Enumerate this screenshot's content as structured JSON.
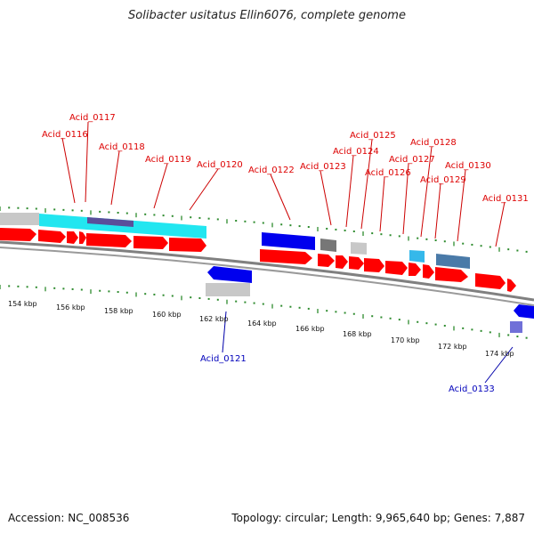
{
  "title": "Solibacter usitatus Ellin6076, complete genome",
  "footer": {
    "accession": "Accession: NC_008536",
    "summary": "Topology: circular; Length: 9,965,640 bp; Genes: 7,887"
  },
  "colors": {
    "forward_gene": "#ff0000",
    "reverse_gene": "#0000ee",
    "label_forward": "#dd0000",
    "label_reverse": "#0000bb",
    "tick": "#2e8b2e",
    "backbone": "#808080",
    "cyan": "#22e6f0",
    "gray_light": "#c8c8c8",
    "gray_dark": "#777777",
    "steel_blue": "#4a7aa8",
    "light_blue": "#35b8ea",
    "purple_blue": "#7070d8"
  },
  "scale": {
    "tick_labels": [
      "154 kbp",
      "156 kbp",
      "158 kbp",
      "160 kbp",
      "162 kbp",
      "164 kbp",
      "166 kbp",
      "168 kbp",
      "170 kbp",
      "172 kbp",
      "174 kbp"
    ]
  },
  "gene_labels_top": [
    "Acid_0116",
    "Acid_0117",
    "Acid_0118",
    "Acid_0119",
    "Acid_0120",
    "Acid_0122",
    "Acid_0123",
    "Acid_0124",
    "Acid_0125",
    "Acid_0126",
    "Acid_0127",
    "Acid_0128",
    "Acid_0129",
    "Acid_0130",
    "Acid_0131"
  ],
  "gene_labels_bottom": [
    "Acid_0121",
    "Acid_0133"
  ]
}
